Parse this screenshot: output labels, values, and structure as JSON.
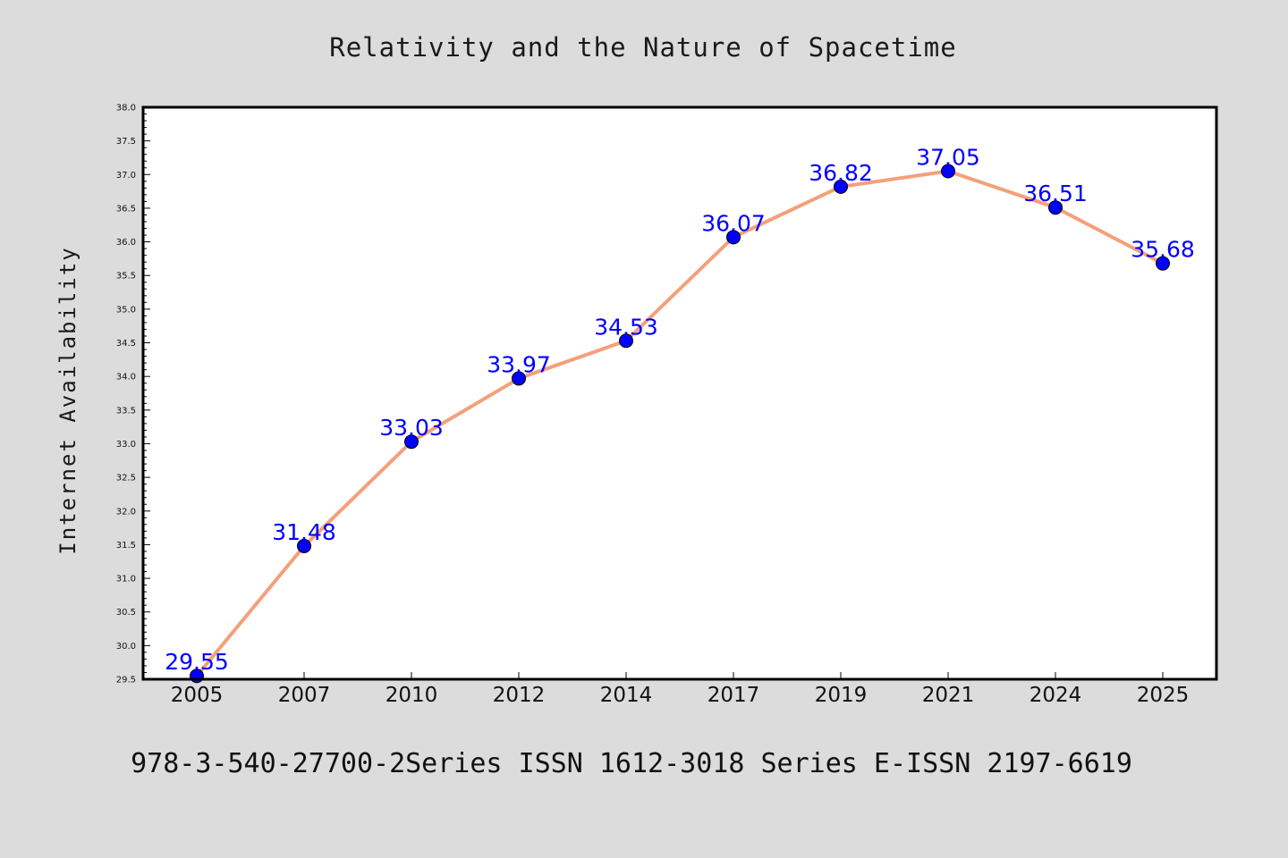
{
  "page": {
    "background": "#dcdcdc",
    "footer": "978-3-540-27700-2Series ISSN 1612-3018 Series E-ISSN 2197-6619"
  },
  "chart_data": {
    "type": "line",
    "title": "Relativity and the Nature of Spacetime",
    "xlabel": "",
    "ylabel": "Internet Availability",
    "categories": [
      "2005",
      "2007",
      "2010",
      "2012",
      "2014",
      "2017",
      "2019",
      "2021",
      "2024",
      "2025"
    ],
    "series": [
      {
        "values": [
          29.55,
          31.48,
          33.03,
          33.97,
          34.53,
          36.07,
          36.82,
          37.05,
          36.51,
          35.68
        ],
        "line_color": "#f4a07a",
        "marker_color": "#0000ff"
      }
    ],
    "data_labels": [
      "29.55",
      "31.48",
      "33.03",
      "33.97",
      "34.53",
      "36.07",
      "36.82",
      "37.05",
      "36.51",
      "35.68"
    ],
    "data_label_color": "#0000ff",
    "ylim": [
      29.5,
      38.0
    ],
    "yticks": [
      "29.5",
      "30.0",
      "30.5",
      "31.0",
      "31.5",
      "32.0",
      "32.5",
      "33.0",
      "33.5",
      "34.0",
      "34.5",
      "35.0",
      "35.5",
      "36.0",
      "36.5",
      "37.0",
      "37.5",
      "38.0"
    ],
    "grid": false,
    "legend": "none",
    "plot_background": "#ffffff"
  }
}
